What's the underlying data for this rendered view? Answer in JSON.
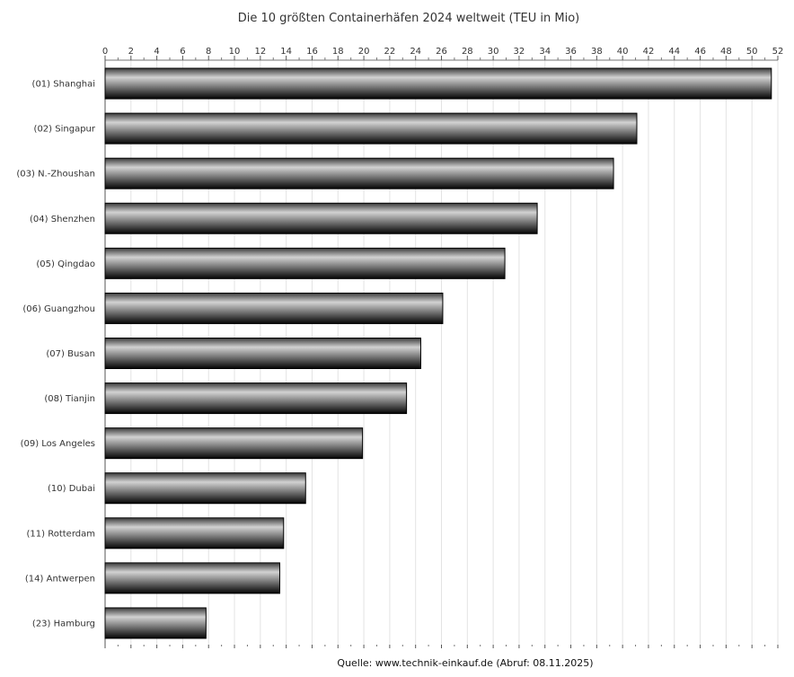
{
  "chart_data": {
    "type": "bar",
    "orientation": "horizontal",
    "title": "Die 10 größten Containerhäfen 2024 weltweit (TEU in Mio)",
    "categories": [
      "(01) Shanghai",
      "(02) Singapur",
      "(03) N.-Zhoushan",
      "(04) Shenzhen",
      "(05) Qingdao",
      "(06) Guangzhou",
      "(07) Busan",
      "(08) Tianjin",
      "(09) Los Angeles",
      "(10) Dubai",
      "(11) Rotterdam",
      "(14) Antwerpen",
      "(23) Hamburg"
    ],
    "values": [
      51.5,
      41.1,
      39.3,
      33.4,
      30.9,
      26.1,
      24.4,
      23.3,
      19.9,
      15.5,
      13.8,
      13.5,
      7.8
    ],
    "xlim": [
      0,
      52
    ],
    "xticks": [
      "0",
      "2",
      "4",
      "6",
      "8",
      "10",
      "12",
      "14",
      "16",
      "18",
      "20",
      "22",
      "24",
      "26",
      "28",
      "30",
      "32",
      "34",
      "36",
      "38",
      "40",
      "42",
      "44",
      "46",
      "48",
      "50",
      "52"
    ],
    "x_axis_position": "top",
    "grid": true,
    "bar_color": "gradient-gray",
    "source": "Quelle: www.technik-einkauf.de (Abruf: 08.11.2025)"
  }
}
